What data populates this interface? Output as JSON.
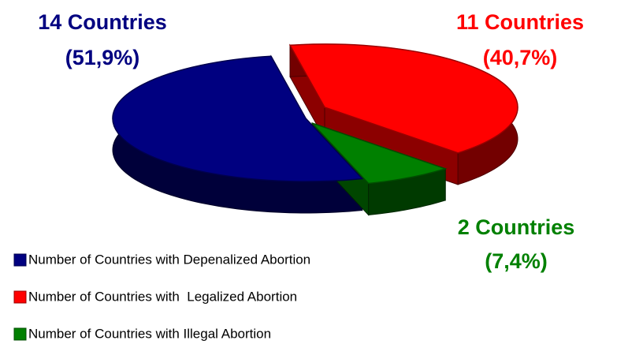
{
  "chart_data": {
    "type": "pie3d",
    "categories": [
      "Number of Countries with Depenalized Abortion",
      "Number of Countries with  Legalized Abortion",
      "Number of Countries with Illegal Abortion"
    ],
    "values": [
      14,
      11,
      2
    ],
    "value_labels": [
      "14 Countries",
      "11 Countries",
      "2 Countries"
    ],
    "percent_labels": [
      "(51,9%)",
      "(40,7%)",
      "(7,4%)"
    ],
    "colors": [
      "#000080",
      "#ff0000",
      "#008000"
    ],
    "legend": "bottom-left"
  }
}
